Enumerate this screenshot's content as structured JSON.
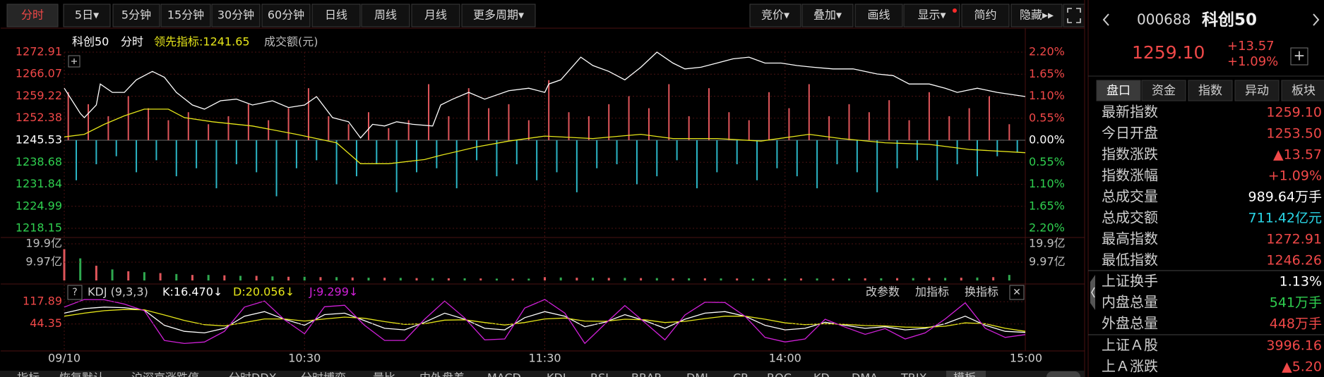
{
  "toolbar": {
    "left": [
      "分时",
      "5日▾",
      "5分钟",
      "15分钟",
      "30分钟",
      "60分钟",
      "日线",
      "周线",
      "月线",
      "更多周期▾"
    ],
    "right": [
      "竞价▾",
      "叠加▾",
      "画线",
      "显示▾",
      "简约",
      "隐藏▸▸"
    ]
  },
  "chart_data": [
    {
      "type": "line",
      "title": "科创50",
      "label": "成交额(元)",
      "series": [
        {
          "name": "分时",
          "color": "#ffffff",
          "x": [
            0,
            4,
            5,
            8,
            9,
            12,
            15,
            18,
            22,
            25,
            28,
            32,
            35,
            39,
            43,
            47,
            52,
            56,
            60,
            63,
            67,
            71,
            74,
            77,
            80,
            83,
            87,
            92,
            94,
            97,
            101,
            105,
            111,
            116,
            120,
            121,
            124,
            129,
            132,
            136,
            140,
            144,
            148,
            152,
            155,
            159,
            163,
            167,
            171,
            175,
            179,
            183,
            187,
            192,
            197,
            203,
            207,
            211,
            216,
            220,
            223,
            228,
            233,
            240
          ],
          "values": [
            1261.7,
            1253.88,
            1252.57,
            1256.48,
            1263.0,
            1260.4,
            1260.4,
            1264.31,
            1266.92,
            1265.09,
            1260.4,
            1256.48,
            1255.18,
            1257.79,
            1258.31,
            1256.48,
            1257.79,
            1255.7,
            1256.48,
            1259.09,
            1252.57,
            1251.27,
            1246.26,
            1250.49,
            1249.96,
            1251.27,
            1250.49,
            1249.96,
            1256.48,
            1258.31,
            1260.4,
            1258.31,
            1260.92,
            1261.7,
            1260.4,
            1263.0,
            1264.31,
            1271.35,
            1268.74,
            1266.92,
            1264.31,
            1268.22,
            1272.91,
            1269.52,
            1267.7,
            1268.22,
            1269.52,
            1270.83,
            1271.35,
            1269.52,
            1269.52,
            1268.74,
            1268.22,
            1267.7,
            1267.7,
            1266.13,
            1265.61,
            1263.0,
            1263.0,
            1261.7,
            1260.4,
            1261.7,
            1260.4,
            1259.1
          ]
        },
        {
          "name": "领先指标:1241.65",
          "color": "#e6e619",
          "x": [
            0,
            5,
            10,
            15,
            20,
            26,
            30,
            37,
            47,
            58,
            68,
            74,
            81,
            90,
            94,
            103,
            111,
            120,
            132,
            144,
            152,
            163,
            174,
            186,
            194,
            205,
            216,
            226,
            240
          ],
          "values": [
            1246.57,
            1247.36,
            1250.49,
            1253.1,
            1255.18,
            1255.18,
            1252.57,
            1251.27,
            1249.96,
            1247.36,
            1244.75,
            1238.23,
            1238.23,
            1239.53,
            1240.84,
            1243.44,
            1245.27,
            1246.83,
            1246.05,
            1247.36,
            1246.05,
            1246.05,
            1245.27,
            1247.36,
            1246.05,
            1244.75,
            1244.23,
            1242.66,
            1241.65
          ]
        }
      ],
      "bars": [
        {
          "color": "#e0555a",
          "axis": "y2",
          "x": [
            1,
            6,
            11,
            16,
            21,
            26,
            31,
            36,
            41,
            46,
            51,
            56,
            61,
            66,
            71,
            76,
            81,
            86,
            91,
            96,
            101,
            106,
            111,
            116,
            121,
            126,
            131,
            136,
            141,
            146,
            151,
            156,
            161,
            166,
            171,
            176,
            181,
            186,
            191,
            196,
            201,
            206,
            211,
            216,
            221,
            226,
            231,
            236
          ],
          "values": [
            1.2,
            0.9,
            0.6,
            1.1,
            0.8,
            0.5,
            0.7,
            0.4,
            0.6,
            0.9,
            0.5,
            0.8,
            1.3,
            0.6,
            0.4,
            0.7,
            0.3,
            0.5,
            1.4,
            0.6,
            1.3,
            0.8,
            0.9,
            0.5,
            1.5,
            0.7,
            0.6,
            0.9,
            1.1,
            0.8,
            1.4,
            0.6,
            1.3,
            0.7,
            0.5,
            1.2,
            0.8,
            1.4,
            0.6,
            0.9,
            0.7,
            1.0,
            0.5,
            1.2,
            0.6,
            0.8,
            1.1,
            0.4
          ]
        },
        {
          "color": "#2bb5c5",
          "axis": "y2",
          "x": [
            3,
            8,
            13,
            18,
            23,
            28,
            33,
            38,
            43,
            48,
            53,
            58,
            63,
            68,
            73,
            78,
            83,
            88,
            93,
            98,
            103,
            108,
            113,
            118,
            123,
            128,
            133,
            138,
            143,
            148,
            153,
            158,
            163,
            168,
            173,
            178,
            183,
            188,
            193,
            198,
            203,
            208,
            213,
            218,
            223,
            228,
            233,
            238
          ],
          "values": [
            -1.0,
            -0.6,
            -0.4,
            -0.8,
            -0.5,
            -0.9,
            -0.7,
            -1.2,
            -0.6,
            -0.8,
            -1.4,
            -0.7,
            -0.5,
            -1.1,
            -0.9,
            -0.6,
            -1.3,
            -0.8,
            -0.7,
            -1.2,
            -0.5,
            -0.9,
            -0.6,
            -1.0,
            -0.8,
            -1.3,
            -0.7,
            -0.6,
            -1.1,
            -0.9,
            -0.5,
            -1.2,
            -0.8,
            -0.6,
            -1.0,
            -0.7,
            -0.9,
            -1.2,
            -0.6,
            -0.8,
            -1.3,
            -0.7,
            -0.5,
            -1.0,
            -0.6,
            -0.9,
            -0.4,
            -0.3
          ]
        }
      ],
      "xlim": [
        0,
        240
      ],
      "xticks": [
        {
          "value": 0,
          "label": "09/10"
        },
        {
          "value": 60,
          "label": "10:30"
        },
        {
          "value": 120,
          "label": "11:30"
        },
        {
          "value": 180,
          "label": "14:00"
        },
        {
          "value": 240,
          "label": "15:00"
        }
      ],
      "ylim": [
        1218.15,
        1272.91
      ],
      "yticks": [
        1272.91,
        1266.07,
        1259.22,
        1252.38,
        1245.53,
        1238.68,
        1231.84,
        1224.99,
        1218.15
      ],
      "y2lim": [
        -2.2,
        2.2
      ],
      "y2ticks": [
        {
          "value": 2.2,
          "label": "2.20%"
        },
        {
          "value": 1.65,
          "label": "1.65%"
        },
        {
          "value": 1.1,
          "label": "1.10%"
        },
        {
          "value": 0.55,
          "label": "0.55%"
        },
        {
          "value": 0,
          "label": "0.00%"
        },
        {
          "value": -0.55,
          "label": "0.55%"
        },
        {
          "value": -1.1,
          "label": "1.10%"
        },
        {
          "value": -1.65,
          "label": "1.65%"
        },
        {
          "value": -2.2,
          "label": "2.20%"
        }
      ],
      "grid": true
    },
    {
      "type": "bar",
      "series": [
        {
          "color": "#e0555a",
          "x": [
            0,
            8,
            16,
            24,
            32,
            40,
            48,
            56,
            64,
            72,
            80,
            88,
            96,
            104,
            112,
            120,
            128,
            136,
            144,
            152,
            160,
            168,
            176,
            184,
            192,
            200,
            208,
            216,
            224,
            232
          ],
          "values": [
            17,
            8,
            5,
            4,
            3,
            2.8,
            2.5,
            2,
            1.8,
            1.6,
            1.5,
            1.3,
            1.2,
            1.1,
            1.0,
            1.8,
            1.5,
            1.4,
            1.3,
            1.2,
            1.2,
            1.1,
            1.0,
            1.1,
            1.0,
            1.2,
            1.3,
            1.4,
            1.5,
            1.8
          ]
        },
        {
          "color": "#2fa84f",
          "x": [
            4,
            12,
            20,
            28,
            36,
            44,
            52,
            60,
            68,
            76,
            84,
            92,
            100,
            108,
            116,
            124,
            132,
            140,
            148,
            156,
            164,
            172,
            180,
            188,
            196,
            204,
            212,
            220,
            228,
            236
          ],
          "values": [
            12,
            6,
            4.5,
            3.5,
            3,
            2.5,
            2.2,
            2,
            1.8,
            1.5,
            1.4,
            1.3,
            1.2,
            1.0,
            1.0,
            1.6,
            1.5,
            1.4,
            1.3,
            1.2,
            1.1,
            1.0,
            1.0,
            1.1,
            1.0,
            1.2,
            1.3,
            1.4,
            1.6,
            3.0
          ]
        }
      ],
      "xlim": [
        0,
        240
      ],
      "ylim": [
        0,
        19.9
      ],
      "yticks": [
        {
          "value": 19.9,
          "label": "19.9亿"
        },
        {
          "value": 9.97,
          "label": "9.97亿"
        }
      ]
    },
    {
      "type": "line",
      "title": "KDJ (9,3,3)",
      "series": [
        {
          "name": "K:16.470↓",
          "color": "#ffffff",
          "x": [
            0,
            5,
            10,
            15,
            20,
            25,
            30,
            35,
            40,
            45,
            50,
            55,
            60,
            65,
            70,
            75,
            80,
            85,
            90,
            95,
            100,
            105,
            110,
            115,
            120,
            125,
            130,
            135,
            140,
            145,
            150,
            155,
            160,
            165,
            170,
            175,
            180,
            185,
            190,
            195,
            200,
            205,
            210,
            215,
            220,
            225,
            230,
            235,
            240
          ],
          "values": [
            80,
            95,
            100,
            98,
            90,
            40,
            20,
            15,
            30,
            70,
            85,
            60,
            40,
            75,
            80,
            55,
            30,
            25,
            50,
            80,
            60,
            30,
            25,
            65,
            85,
            70,
            35,
            50,
            75,
            55,
            30,
            60,
            80,
            85,
            70,
            40,
            25,
            30,
            50,
            40,
            30,
            35,
            25,
            30,
            45,
            70,
            40,
            20,
            16.47
          ]
        },
        {
          "name": "D:20.056↓",
          "color": "#e6e619",
          "x": [
            0,
            5,
            10,
            15,
            20,
            25,
            30,
            35,
            40,
            45,
            50,
            55,
            60,
            65,
            70,
            75,
            80,
            85,
            90,
            95,
            100,
            105,
            110,
            115,
            120,
            125,
            130,
            135,
            140,
            145,
            150,
            155,
            160,
            165,
            170,
            175,
            180,
            185,
            190,
            195,
            200,
            205,
            210,
            215,
            220,
            225,
            230,
            235,
            240
          ],
          "values": [
            70,
            80,
            88,
            92,
            91,
            74,
            56,
            42,
            38,
            49,
            61,
            61,
            54,
            61,
            67,
            63,
            52,
            43,
            45,
            57,
            58,
            49,
            41,
            49,
            61,
            64,
            54,
            53,
            60,
            58,
            49,
            53,
            62,
            70,
            70,
            60,
            48,
            42,
            45,
            43,
            39,
            38,
            34,
            33,
            37,
            48,
            45,
            30,
            20.056
          ]
        },
        {
          "name": "J:9.299↓",
          "color": "#d020d8",
          "x": [
            0,
            5,
            10,
            15,
            20,
            25,
            30,
            35,
            40,
            45,
            50,
            55,
            60,
            65,
            70,
            75,
            80,
            85,
            90,
            95,
            100,
            105,
            110,
            115,
            120,
            125,
            130,
            135,
            140,
            145,
            150,
            155,
            160,
            165,
            170,
            175,
            180,
            185,
            190,
            195,
            200,
            205,
            210,
            215,
            220,
            225,
            230,
            235,
            240
          ],
          "values": [
            100,
            125,
            124,
            110,
            88,
            -10,
            -20,
            -15,
            20,
            100,
            120,
            58,
            12,
            101,
            106,
            40,
            -10,
            -10,
            60,
            120,
            64,
            -8,
            -5,
            97,
            125,
            80,
            -20,
            44,
            105,
            49,
            -8,
            74,
            116,
            115,
            70,
            0,
            -15,
            -5,
            60,
            34,
            10,
            29,
            -5,
            15,
            61,
            114,
            30,
            0,
            9.299
          ]
        }
      ],
      "xlim": [
        0,
        240
      ],
      "ylim": [
        -26,
        132
      ],
      "yticks": [
        117.89,
        44.35
      ]
    }
  ],
  "indicator_help": "?",
  "indicator_buttons": [
    "改参数",
    "加指标",
    "换指标",
    "✕"
  ],
  "bottom_tabs": [
    "指标",
    "恢复默认",
    "沪深京涨跌停",
    "分时DDX",
    "分时博弈",
    "量比",
    "内外盘差",
    "MACD",
    "KDJ",
    "RSI",
    "BRAR",
    "DMI",
    "CR",
    "ROC",
    "KD",
    "DMA",
    "TRIX",
    "模板"
  ],
  "quote": {
    "code": "000688",
    "name": "科创50",
    "price": "1259.10",
    "change": "+13.57",
    "change_pct": "+1.09%",
    "add": "+",
    "tabs": [
      "盘口",
      "资金",
      "指数",
      "异动",
      "板块"
    ],
    "groups": [
      [
        {
          "label": "最新指数",
          "value": "1259.10",
          "color": "#f04848"
        },
        {
          "label": "今日开盘",
          "value": "1253.50",
          "color": "#f04848"
        },
        {
          "label": "指数涨跌",
          "value": "▲13.57",
          "color": "#f04848"
        },
        {
          "label": "指数涨幅",
          "value": "+1.09%",
          "color": "#f04848"
        },
        {
          "label": "总成交量",
          "value": "989.64万手",
          "color": "#ffffff"
        },
        {
          "label": "总成交额",
          "value": "711.42亿元",
          "color": "#2ad6e6"
        },
        {
          "label": "最高指数",
          "value": "1272.91",
          "color": "#f04848"
        },
        {
          "label": "最低指数",
          "value": "1246.26",
          "color": "#f04848"
        }
      ],
      [
        {
          "label": "上证换手",
          "value": "1.13%",
          "color": "#ffffff"
        },
        {
          "label": "内盘总量",
          "value": "541万手",
          "color": "#2fcf4f"
        },
        {
          "label": "外盘总量",
          "value": "448万手",
          "color": "#f04848"
        }
      ],
      [
        {
          "label": "上证Ａ股",
          "value": "3996.16",
          "color": "#f04848"
        },
        {
          "label": "上Ａ涨跌",
          "value": "▲5.20",
          "color": "#f04848"
        }
      ]
    ]
  }
}
